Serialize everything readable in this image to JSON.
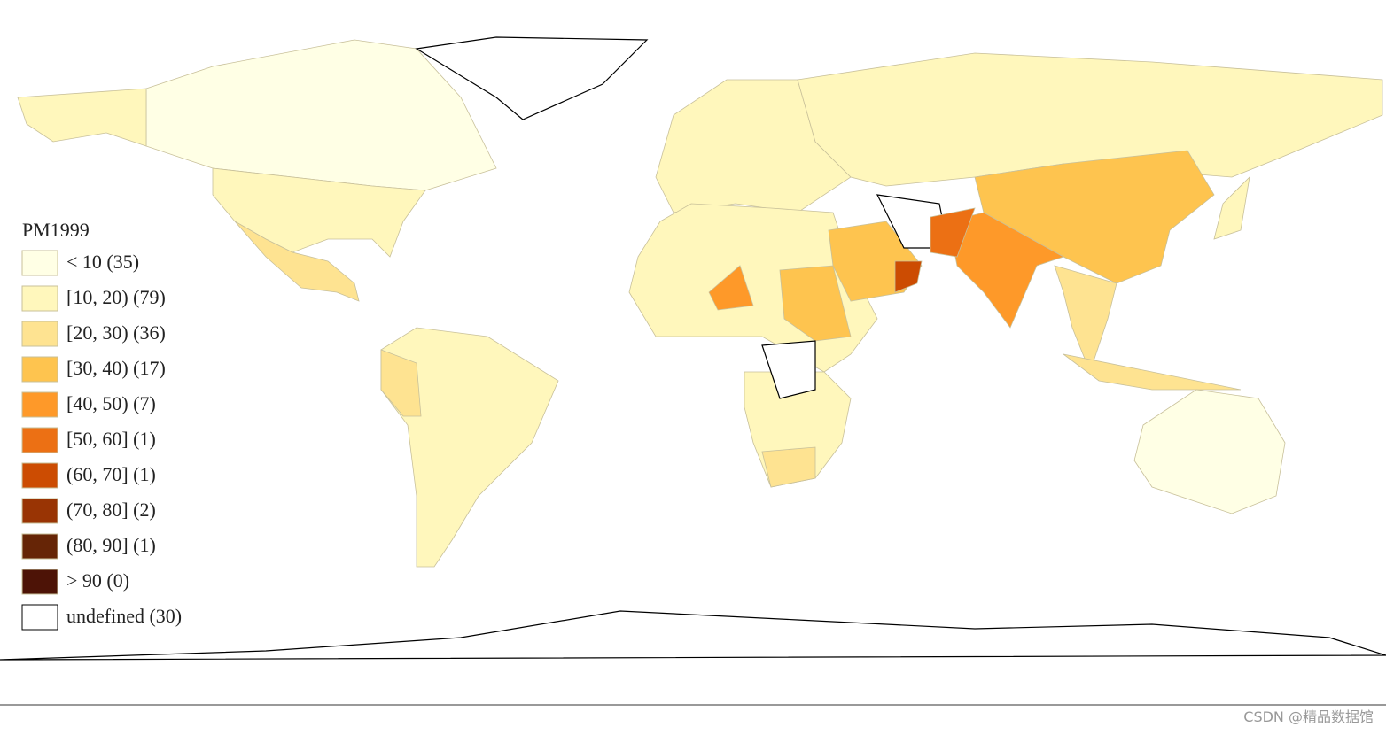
{
  "map": {
    "legend": {
      "title": "PM1999",
      "items": [
        {
          "label": "< 10 (35)",
          "color": "#ffffe5"
        },
        {
          "label": "[10, 20) (79)",
          "color": "#fff7bc"
        },
        {
          "label": "[20, 30) (36)",
          "color": "#fee391"
        },
        {
          "label": "[30, 40) (17)",
          "color": "#fec44f"
        },
        {
          "label": "[40, 50) (7)",
          "color": "#fe9929"
        },
        {
          "label": "[50, 60] (1)",
          "color": "#ec7014"
        },
        {
          "label": "(60, 70] (1)",
          "color": "#cc4c02"
        },
        {
          "label": "(70, 80] (2)",
          "color": "#993404"
        },
        {
          "label": "(80, 90] (1)",
          "color": "#662506"
        },
        {
          "label": "> 90 (0)",
          "color": "#4d1306"
        },
        {
          "label": "undefined (30)",
          "color": "#ffffff"
        }
      ]
    },
    "watermark": "CSDN @精品数据馆"
  }
}
